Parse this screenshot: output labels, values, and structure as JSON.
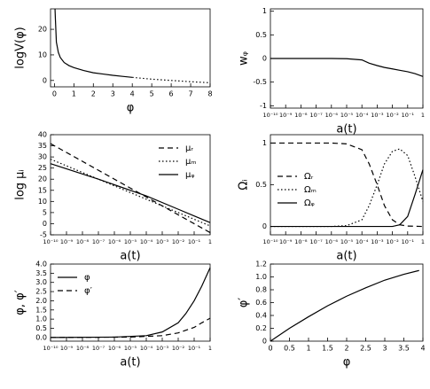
{
  "chart_data": [
    {
      "type": "line",
      "ylabel": "logV(φ)",
      "xlabel": "φ",
      "xscale": "linear",
      "xlim": [
        -0.2,
        8
      ],
      "ylim": [
        -2.5,
        28
      ],
      "xticks": [
        0,
        1,
        2,
        3,
        4,
        5,
        6,
        7,
        8
      ],
      "yticks": [
        0,
        10,
        20
      ],
      "series": [
        {
          "color": "#000",
          "dash": "solid",
          "x": [
            0.03,
            0.05,
            0.1,
            0.2,
            0.3,
            0.5,
            0.75,
            1,
            1.5,
            2,
            2.5,
            3,
            3.5,
            4
          ],
          "values": [
            28,
            24,
            15,
            11,
            9,
            7,
            5.8,
            5,
            3.9,
            3,
            2.5,
            2,
            1.6,
            1.2
          ]
        },
        {
          "color": "#000",
          "dash": "dotted",
          "x": [
            4,
            5,
            6,
            7,
            8
          ],
          "values": [
            1.2,
            0.5,
            0,
            -0.5,
            -0.9
          ]
        }
      ]
    },
    {
      "type": "line",
      "ylabel": "wᵩ",
      "xlabel": "a(t)",
      "xscale": "log",
      "xlim": [
        1e-10,
        1
      ],
      "ylim": [
        -1.05,
        1.05
      ],
      "xticks": [
        {
          "value": 1e-10,
          "label": "10⁻¹⁰"
        },
        {
          "value": 1e-09,
          "label": "10⁻⁹"
        },
        {
          "value": 1e-08,
          "label": "10⁻⁸"
        },
        {
          "value": 1e-07,
          "label": "10⁻⁷"
        },
        {
          "value": 1e-06,
          "label": "10⁻⁶"
        },
        {
          "value": 1e-05,
          "label": "10⁻⁵"
        },
        {
          "value": 0.0001,
          "label": "10⁻⁴"
        },
        {
          "value": 0.001,
          "label": "10⁻³"
        },
        {
          "value": 0.01,
          "label": "10⁻²"
        },
        {
          "value": 0.1,
          "label": "10⁻¹"
        },
        1
      ],
      "yticks": [
        -1,
        -0.5,
        0,
        0.5,
        1
      ],
      "series": [
        {
          "color": "#000",
          "dash": "solid",
          "x": [
            1e-10,
            1e-08,
            1e-06,
            1e-05,
            0.0001,
            0.0003,
            0.001,
            0.003,
            0.01,
            0.03,
            0.1,
            0.3,
            1
          ],
          "values": [
            0,
            0,
            0,
            -0.005,
            -0.03,
            -0.1,
            -0.15,
            -0.19,
            -0.22,
            -0.25,
            -0.28,
            -0.32,
            -0.38
          ]
        }
      ]
    },
    {
      "type": "line",
      "ylabel": "log μᵢ",
      "xlabel": "a(t)",
      "xscale": "log",
      "legend": "upper right",
      "xlim": [
        1e-10,
        1
      ],
      "ylim": [
        -5,
        40
      ],
      "xticks": [
        {
          "value": 1e-10,
          "label": "10⁻¹⁰"
        },
        {
          "value": 1e-09,
          "label": "10⁻⁹"
        },
        {
          "value": 1e-08,
          "label": "10⁻⁸"
        },
        {
          "value": 1e-07,
          "label": "10⁻⁷"
        },
        {
          "value": 1e-06,
          "label": "10⁻⁶"
        },
        {
          "value": 1e-05,
          "label": "10⁻⁵"
        },
        {
          "value": 0.0001,
          "label": "10⁻⁴"
        },
        {
          "value": 0.001,
          "label": "10⁻³"
        },
        {
          "value": 0.01,
          "label": "10⁻²"
        },
        {
          "value": 0.1,
          "label": "10⁻¹"
        },
        1
      ],
      "yticks": [
        -5,
        0,
        5,
        10,
        15,
        20,
        25,
        30,
        35,
        40
      ],
      "series": [
        {
          "name": "μᵣ",
          "color": "#000",
          "dash": "dashed",
          "x": [
            1e-10,
            1e-05,
            0.1,
            1
          ],
          "values": [
            36,
            16,
            0,
            -4
          ]
        },
        {
          "name": "μₘ",
          "color": "#000",
          "dash": "dotted",
          "x": [
            1e-10,
            1e-05,
            1
          ],
          "values": [
            29,
            14,
            -1
          ]
        },
        {
          "name": "μᵩ",
          "color": "#000",
          "dash": "solid",
          "x": [
            1e-10,
            1e-07,
            0.0001,
            0.01,
            0.1,
            1
          ],
          "values": [
            27,
            20,
            12.5,
            6.5,
            3.5,
            0.5
          ]
        }
      ]
    },
    {
      "type": "line",
      "ylabel": "Ωᵢ",
      "xlabel": "a(t)",
      "xscale": "log",
      "legend": "center left",
      "xlim": [
        1e-10,
        1
      ],
      "ylim": [
        -0.1,
        1.1
      ],
      "xticks": [
        {
          "value": 1e-10,
          "label": "10⁻¹⁰"
        },
        {
          "value": 1e-09,
          "label": "10⁻⁹"
        },
        {
          "value": 1e-08,
          "label": "10⁻⁸"
        },
        {
          "value": 1e-07,
          "label": "10⁻⁷"
        },
        {
          "value": 1e-06,
          "label": "10⁻⁶"
        },
        {
          "value": 1e-05,
          "label": "10⁻⁵"
        },
        {
          "value": 0.0001,
          "label": "10⁻⁴"
        },
        {
          "value": 0.001,
          "label": "10⁻³"
        },
        {
          "value": 0.01,
          "label": "10⁻²"
        },
        {
          "value": 0.1,
          "label": "10⁻¹"
        },
        1
      ],
      "yticks": [
        0,
        0.5,
        1
      ],
      "series": [
        {
          "name": "Ωᵣ",
          "color": "#000",
          "dash": "dashed",
          "x": [
            1e-10,
            1e-06,
            1e-05,
            0.0001,
            0.0003,
            0.001,
            0.003,
            0.01,
            0.03,
            0.1,
            1
          ],
          "values": [
            1,
            1,
            0.99,
            0.92,
            0.75,
            0.5,
            0.25,
            0.08,
            0.02,
            0.005,
            0
          ]
        },
        {
          "name": "Ωₘ",
          "color": "#000",
          "dash": "dotted",
          "x": [
            1e-10,
            1e-06,
            1e-05,
            0.0001,
            0.0003,
            0.001,
            0.003,
            0.01,
            0.03,
            0.1,
            0.3,
            1
          ],
          "values": [
            0,
            0,
            0.01,
            0.08,
            0.25,
            0.5,
            0.75,
            0.9,
            0.93,
            0.85,
            0.6,
            0.3
          ]
        },
        {
          "name": "Ωᵩ",
          "color": "#000",
          "dash": "solid",
          "x": [
            1e-10,
            0.01,
            0.03,
            0.1,
            0.3,
            1
          ],
          "values": [
            0,
            0,
            0.02,
            0.12,
            0.38,
            0.68
          ]
        }
      ]
    },
    {
      "type": "line",
      "ylabel": "φ, φ′",
      "xlabel": "a(t)",
      "xscale": "log",
      "legend": "upper left",
      "xlim": [
        1e-10,
        1
      ],
      "ylim": [
        -0.2,
        4
      ],
      "xticks": [
        {
          "value": 1e-10,
          "label": "10⁻¹⁰"
        },
        {
          "value": 1e-09,
          "label": "10⁻⁹"
        },
        {
          "value": 1e-08,
          "label": "10⁻⁸"
        },
        {
          "value": 1e-07,
          "label": "10⁻⁷"
        },
        {
          "value": 1e-06,
          "label": "10⁻⁶"
        },
        {
          "value": 1e-05,
          "label": "10⁻⁵"
        },
        {
          "value": 0.0001,
          "label": "10⁻⁴"
        },
        {
          "value": 0.001,
          "label": "10⁻³"
        },
        {
          "value": 0.01,
          "label": "10⁻²"
        },
        {
          "value": 0.1,
          "label": "10⁻¹"
        },
        1
      ],
      "yticks": [
        {
          "value": 0,
          "label": "0.0"
        },
        0.5,
        {
          "value": 1,
          "label": "1.0"
        },
        1.5,
        {
          "value": 2,
          "label": "2.0"
        },
        2.5,
        {
          "value": 3,
          "label": "3.0"
        },
        3.5,
        {
          "value": 4,
          "label": "4.0"
        }
      ],
      "series": [
        {
          "name": "φ",
          "color": "#000",
          "dash": "solid",
          "x": [
            1e-10,
            1e-06,
            0.0001,
            0.001,
            0.01,
            0.03,
            0.1,
            0.3,
            1
          ],
          "values": [
            0,
            0.02,
            0.1,
            0.3,
            0.8,
            1.3,
            2,
            2.8,
            3.8
          ]
        },
        {
          "name": "φ′",
          "color": "#000",
          "dash": "dashed",
          "x": [
            1e-10,
            1e-05,
            0.001,
            0.01,
            0.1,
            0.3,
            1
          ],
          "values": [
            0,
            0.02,
            0.1,
            0.25,
            0.55,
            0.8,
            1.05
          ]
        }
      ]
    },
    {
      "type": "line",
      "ylabel": "φ′",
      "xlabel": "φ",
      "xscale": "linear",
      "xlim": [
        0,
        4
      ],
      "ylim": [
        0,
        1.2
      ],
      "xticks": [
        0,
        0.5,
        1,
        1.5,
        2,
        2.5,
        3,
        3.5,
        4
      ],
      "yticks": [
        0,
        0.2,
        0.4,
        0.6,
        0.8,
        {
          "value": 1,
          "label": "1.0"
        },
        1.2
      ],
      "series": [
        {
          "color": "#000",
          "dash": "solid",
          "x": [
            0,
            0.5,
            1,
            1.5,
            2,
            2.5,
            3,
            3.5,
            3.9
          ],
          "values": [
            0,
            0.2,
            0.38,
            0.55,
            0.7,
            0.83,
            0.95,
            1.04,
            1.1
          ]
        }
      ]
    }
  ]
}
